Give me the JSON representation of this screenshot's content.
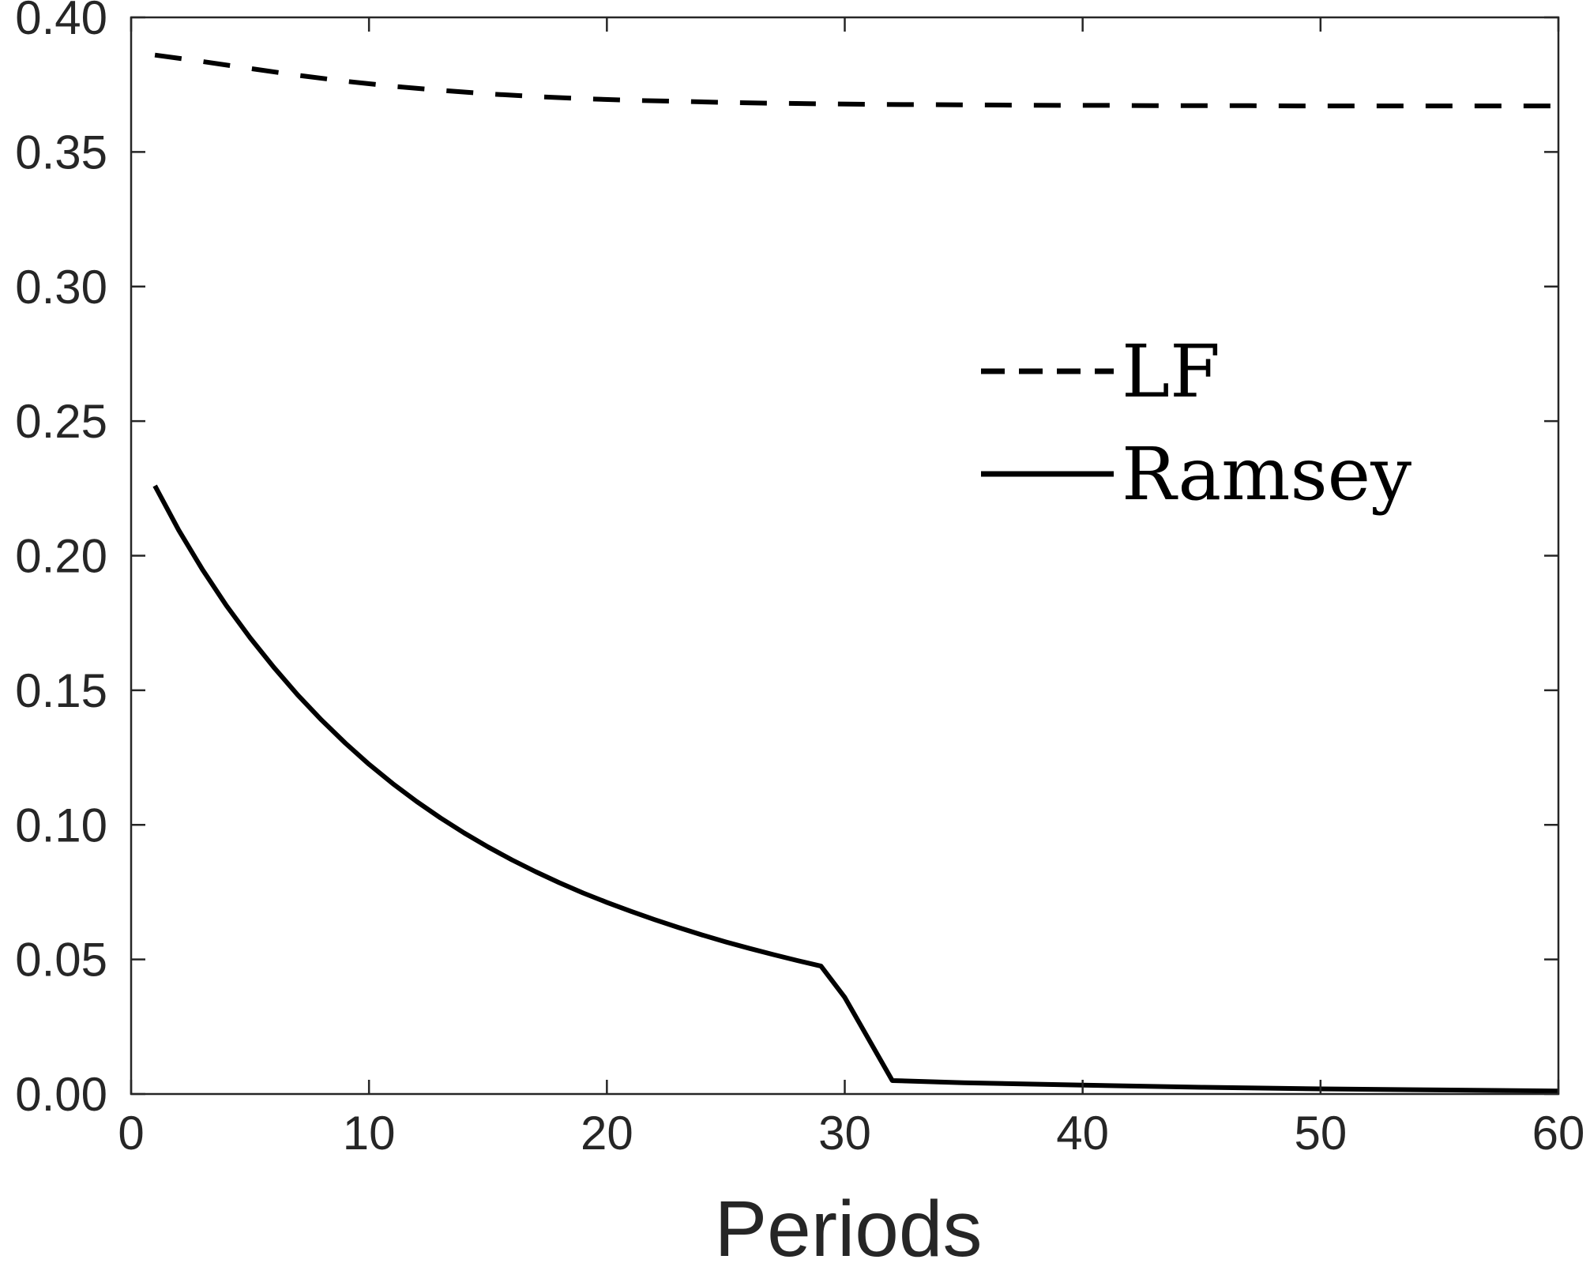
{
  "chart_data": {
    "type": "line",
    "title": "",
    "xlabel": "Periods",
    "ylabel": "",
    "xlim": [
      0,
      60
    ],
    "ylim": [
      0,
      0.4
    ],
    "xticks": [
      "0",
      "10",
      "20",
      "30",
      "40",
      "50",
      "60"
    ],
    "yticks": [
      "0.00",
      "0.05",
      "0.10",
      "0.15",
      "0.20",
      "0.25",
      "0.30",
      "0.35",
      "0.40"
    ],
    "grid": false,
    "legend_position": "upper-right",
    "series": [
      {
        "name": "LF",
        "style": "dashed",
        "color": "#000000",
        "x": [
          1,
          3,
          5,
          7,
          9,
          11,
          13,
          15,
          17,
          19,
          21,
          23,
          25,
          27,
          29,
          31,
          33,
          35,
          37,
          39,
          41,
          43,
          45,
          47,
          49,
          51,
          53,
          55,
          57,
          59,
          60
        ],
        "y": [
          0.386,
          0.3836,
          0.381,
          0.3785,
          0.3763,
          0.3744,
          0.3729,
          0.3716,
          0.3706,
          0.3698,
          0.3692,
          0.3688,
          0.3684,
          0.3681,
          0.3679,
          0.3677,
          0.3676,
          0.3675,
          0.3674,
          0.3673,
          0.3673,
          0.3672,
          0.3672,
          0.3672,
          0.3671,
          0.3671,
          0.3671,
          0.3671,
          0.3671,
          0.3671,
          0.3671
        ]
      },
      {
        "name": "Ramsey",
        "style": "solid",
        "color": "#000000",
        "x": [
          1,
          2,
          3,
          4,
          5,
          6,
          7,
          8,
          9,
          10,
          11,
          12,
          13,
          14,
          15,
          16,
          17,
          18,
          19,
          20,
          21,
          22,
          23,
          24,
          25,
          26,
          27,
          28,
          29,
          30,
          32,
          35,
          40,
          45,
          50,
          55,
          60
        ],
        "y": [
          0.226,
          0.2095,
          0.1948,
          0.1815,
          0.1695,
          0.1585,
          0.1483,
          0.139,
          0.1304,
          0.1225,
          0.1153,
          0.1087,
          0.1026,
          0.097,
          0.0918,
          0.087,
          0.0826,
          0.0785,
          0.0747,
          0.0712,
          0.0679,
          0.0648,
          0.0619,
          0.0591,
          0.0565,
          0.0541,
          0.0518,
          0.0496,
          0.0475,
          0.0359,
          0.005,
          0.0042,
          0.0033,
          0.0025,
          0.0019,
          0.0015,
          0.0011
        ]
      }
    ]
  }
}
